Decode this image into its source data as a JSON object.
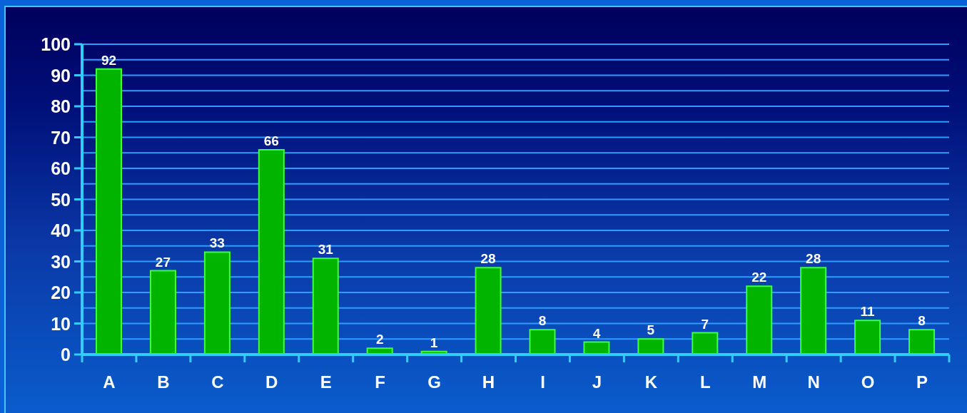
{
  "chart_data": {
    "type": "bar",
    "categories": [
      "A",
      "B",
      "C",
      "D",
      "E",
      "F",
      "G",
      "H",
      "I",
      "J",
      "K",
      "L",
      "M",
      "N",
      "O",
      "P"
    ],
    "values": [
      92,
      27,
      33,
      66,
      31,
      2,
      1,
      28,
      8,
      4,
      5,
      7,
      22,
      28,
      11,
      8
    ],
    "color": "#00b400",
    "ylim": [
      0,
      100
    ],
    "yticks": [
      0,
      {
        "value": 5,
        "label": null
      },
      10,
      {
        "value": 15,
        "label": null
      },
      20,
      {
        "value": 25,
        "label": null
      },
      30,
      {
        "value": 35,
        "label": null
      },
      40,
      {
        "value": 45,
        "label": null
      },
      50,
      {
        "value": 55,
        "label": null
      },
      60,
      {
        "value": 65,
        "label": null
      },
      70,
      {
        "value": 75,
        "label": null
      },
      80,
      {
        "value": 85,
        "label": null
      },
      90,
      {
        "value": 95,
        "label": null
      },
      100
    ],
    "grid": "y",
    "data_labels": true
  }
}
